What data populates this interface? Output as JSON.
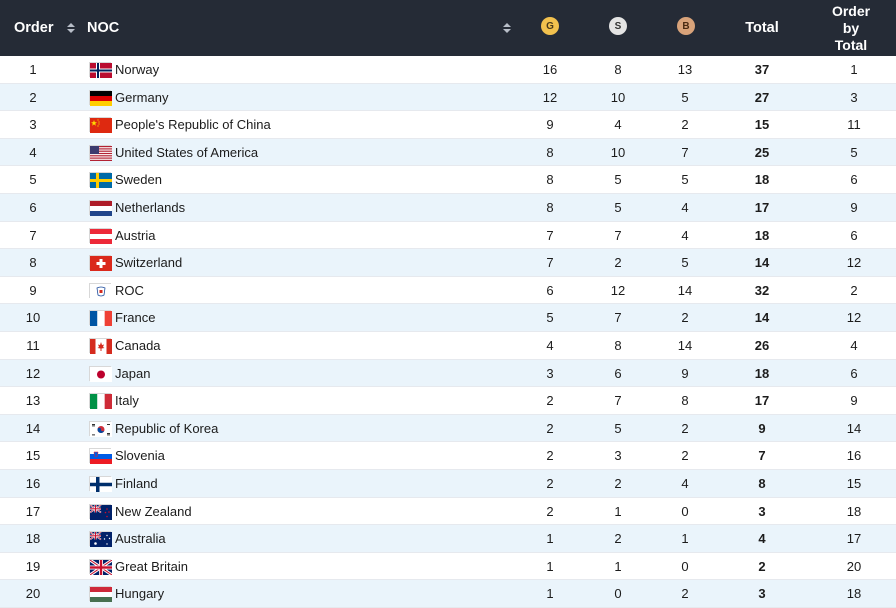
{
  "header": {
    "order": "Order",
    "noc": "NOC",
    "gold": "G",
    "silver": "S",
    "bronze": "B",
    "total": "Total",
    "order_by_total_lines": [
      "Order",
      "by",
      "Total"
    ]
  },
  "colors": {
    "header_bg": "#252b36",
    "gold": "#f2c14e",
    "silver": "#e4e4e4",
    "bronze": "#d9a37a",
    "row_alt": "#eaf4fb"
  },
  "rows": [
    {
      "order": "1",
      "flag": "norway-flag",
      "noc": "Norway",
      "g": "16",
      "s": "8",
      "b": "13",
      "total": "37",
      "obt": "1"
    },
    {
      "order": "2",
      "flag": "germany-flag",
      "noc": "Germany",
      "g": "12",
      "s": "10",
      "b": "5",
      "total": "27",
      "obt": "3"
    },
    {
      "order": "3",
      "flag": "china-flag",
      "noc": "People's Republic of China",
      "g": "9",
      "s": "4",
      "b": "2",
      "total": "15",
      "obt": "11"
    },
    {
      "order": "4",
      "flag": "usa-flag",
      "noc": "United States of America",
      "g": "8",
      "s": "10",
      "b": "7",
      "total": "25",
      "obt": "5"
    },
    {
      "order": "5",
      "flag": "sweden-flag",
      "noc": "Sweden",
      "g": "8",
      "s": "5",
      "b": "5",
      "total": "18",
      "obt": "6"
    },
    {
      "order": "6",
      "flag": "netherlands-flag",
      "noc": "Netherlands",
      "g": "8",
      "s": "5",
      "b": "4",
      "total": "17",
      "obt": "9"
    },
    {
      "order": "7",
      "flag": "austria-flag",
      "noc": "Austria",
      "g": "7",
      "s": "7",
      "b": "4",
      "total": "18",
      "obt": "6"
    },
    {
      "order": "8",
      "flag": "switzerland-flag",
      "noc": "Switzerland",
      "g": "7",
      "s": "2",
      "b": "5",
      "total": "14",
      "obt": "12"
    },
    {
      "order": "9",
      "flag": "roc-flag",
      "noc": "ROC",
      "g": "6",
      "s": "12",
      "b": "14",
      "total": "32",
      "obt": "2"
    },
    {
      "order": "10",
      "flag": "france-flag",
      "noc": "France",
      "g": "5",
      "s": "7",
      "b": "2",
      "total": "14",
      "obt": "12"
    },
    {
      "order": "11",
      "flag": "canada-flag",
      "noc": "Canada",
      "g": "4",
      "s": "8",
      "b": "14",
      "total": "26",
      "obt": "4"
    },
    {
      "order": "12",
      "flag": "japan-flag",
      "noc": "Japan",
      "g": "3",
      "s": "6",
      "b": "9",
      "total": "18",
      "obt": "6"
    },
    {
      "order": "13",
      "flag": "italy-flag",
      "noc": "Italy",
      "g": "2",
      "s": "7",
      "b": "8",
      "total": "17",
      "obt": "9"
    },
    {
      "order": "14",
      "flag": "korea-flag",
      "noc": "Republic of Korea",
      "g": "2",
      "s": "5",
      "b": "2",
      "total": "9",
      "obt": "14"
    },
    {
      "order": "15",
      "flag": "slovenia-flag",
      "noc": "Slovenia",
      "g": "2",
      "s": "3",
      "b": "2",
      "total": "7",
      "obt": "16"
    },
    {
      "order": "16",
      "flag": "finland-flag",
      "noc": "Finland",
      "g": "2",
      "s": "2",
      "b": "4",
      "total": "8",
      "obt": "15"
    },
    {
      "order": "17",
      "flag": "new-zealand-flag",
      "noc": "New Zealand",
      "g": "2",
      "s": "1",
      "b": "0",
      "total": "3",
      "obt": "18"
    },
    {
      "order": "18",
      "flag": "australia-flag",
      "noc": "Australia",
      "g": "1",
      "s": "2",
      "b": "1",
      "total": "4",
      "obt": "17"
    },
    {
      "order": "19",
      "flag": "great-britain-flag",
      "noc": "Great Britain",
      "g": "1",
      "s": "1",
      "b": "0",
      "total": "2",
      "obt": "20"
    },
    {
      "order": "20",
      "flag": "hungary-flag",
      "noc": "Hungary",
      "g": "1",
      "s": "0",
      "b": "2",
      "total": "3",
      "obt": "18"
    }
  ]
}
